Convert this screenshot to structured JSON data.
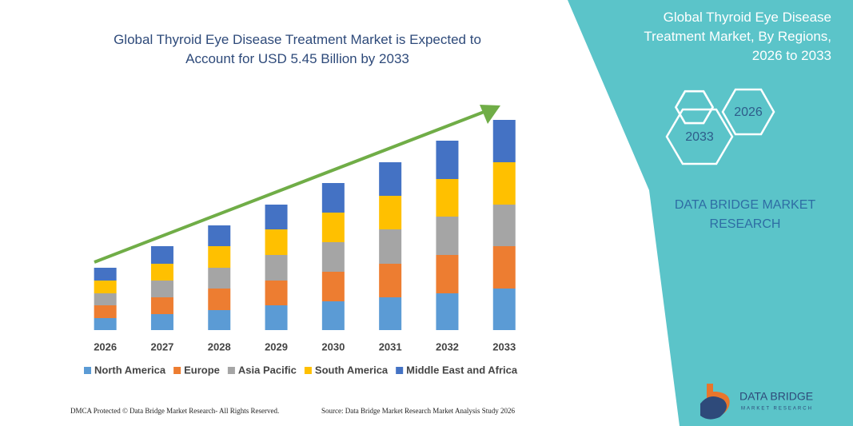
{
  "chart_data": {
    "type": "bar",
    "title": "Global Thyroid Eye Disease Treatment Market is Expected to Account for USD 5.45 Billion by 2033",
    "categories": [
      "2026",
      "2027",
      "2028",
      "2029",
      "2030",
      "2031",
      "2032",
      "2033"
    ],
    "stacked": true,
    "series": [
      {
        "name": "North America",
        "color": "#5b9bd5",
        "values": [
          15,
          20,
          25,
          31,
          36,
          41,
          46,
          52
        ]
      },
      {
        "name": "Europe",
        "color": "#ed7d31",
        "values": [
          16,
          21,
          27,
          31,
          37,
          42,
          48,
          53
        ]
      },
      {
        "name": "Asia Pacific",
        "color": "#a5a5a5",
        "values": [
          15,
          21,
          26,
          32,
          37,
          43,
          48,
          52
        ]
      },
      {
        "name": "South America",
        "color": "#ffc000",
        "values": [
          16,
          21,
          27,
          32,
          37,
          42,
          47,
          53
        ]
      },
      {
        "name": "Middle East and Africa",
        "color": "#4472c4",
        "values": [
          16,
          22,
          26,
          31,
          37,
          42,
          48,
          53
        ]
      }
    ],
    "trend_arrow_color": "#70ad47"
  },
  "panel": {
    "title": "Global Thyroid Eye Disease Treatment Market, By Regions, 2026 to 2033",
    "hex_start": "2026",
    "hex_end": "2033",
    "brand": "DATA BRIDGE MARKET RESEARCH"
  },
  "logo": {
    "name": "DATA BRIDGE",
    "tagline": "MARKET RESEARCH"
  },
  "footer": {
    "rights": "DMCA Protected © Data Bridge Market Research-  All Rights Reserved.",
    "source": "Source: Data Bridge Market Research  Market Analysis Study 2026"
  }
}
